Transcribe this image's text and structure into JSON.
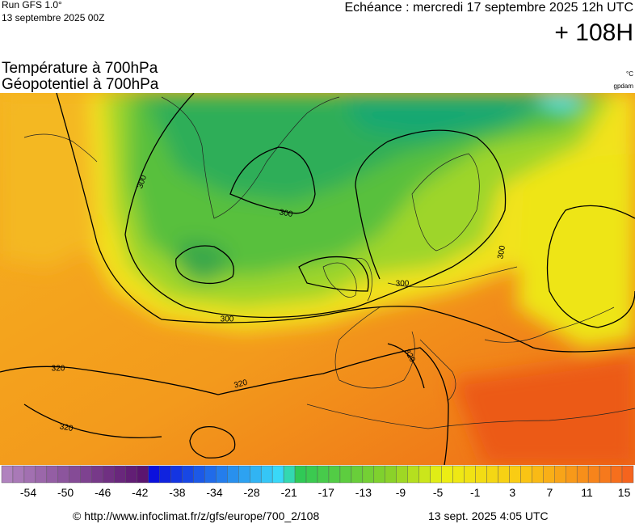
{
  "header": {
    "run": "Run GFS 1.0°",
    "run_date": "13 septembre 2025 00Z",
    "valid_time": "Echéance : mercredi 17 septembre 2025 12h UTC",
    "lead": "+ 108H"
  },
  "titles": {
    "line1": "Température à 700hPa",
    "line2": "Géopotentiel à 700hPa",
    "unit_temp": "°C",
    "unit_geo": "gpdam"
  },
  "contour_labels": [
    "300",
    "300",
    "300",
    "300",
    "300",
    "320",
    "320",
    "320",
    "320"
  ],
  "colorbar_labels": [
    "-54",
    "-50",
    "-46",
    "-42",
    "-38",
    "-34",
    "-28",
    "-21",
    "-17",
    "-13",
    "-9",
    "-5",
    "-1",
    "3",
    "7",
    "11",
    "15"
  ],
  "footer": {
    "url": "© http://www.infoclimat.fr/z/gfs/europe/700_2/108",
    "generated": "13 sept. 2025  4:05 UTC"
  }
}
